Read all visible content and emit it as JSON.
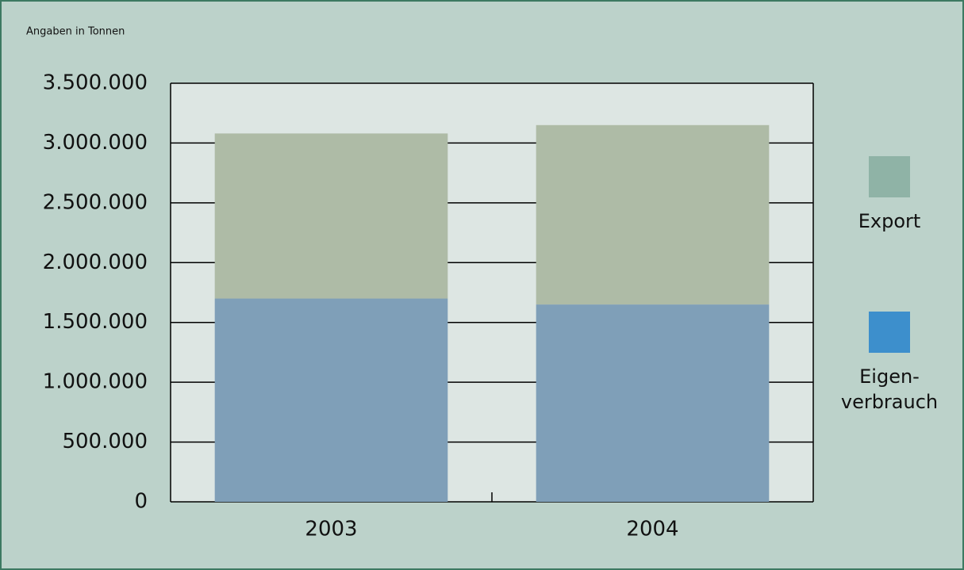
{
  "chart_data": {
    "type": "stacked_bar",
    "subtitle": "Angaben in Tonnen",
    "categories": [
      "2003",
      "2004"
    ],
    "series": [
      {
        "name": "Eigen-\nverbrauch",
        "color": "#7f9fb8",
        "legend_color": "#3d8fcc",
        "values": [
          1700000,
          1650000
        ]
      },
      {
        "name": "Export",
        "color": "#aebba6",
        "legend_color": "#8fb3a6",
        "values": [
          1380000,
          1500000
        ]
      }
    ],
    "ylim": [
      0,
      3500000
    ],
    "yticks": [
      0,
      {
        "value": 500000,
        "label": "500.000"
      },
      {
        "value": 1000000,
        "label": "1.000.000"
      },
      {
        "value": 1500000,
        "label": "1.500.000"
      },
      {
        "value": 2000000,
        "label": "2.000.000"
      },
      {
        "value": 2500000,
        "label": "2.500.000"
      },
      {
        "value": 3000000,
        "label": "3.000.000"
      },
      {
        "value": 3500000,
        "label": "3.500.000"
      }
    ],
    "grid": true
  }
}
